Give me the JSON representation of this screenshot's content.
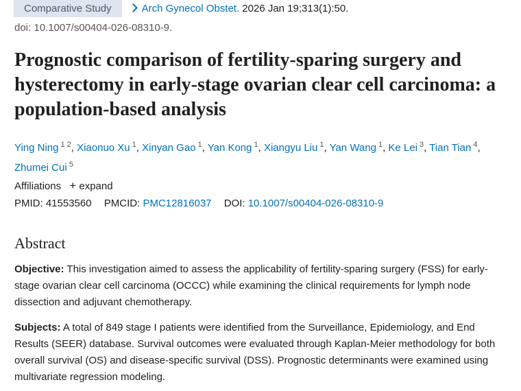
{
  "header": {
    "tag": "Comparative Study",
    "journal": "Arch Gynecol Obstet.",
    "citation": " 2026 Jan 19;313(1):50.",
    "doi": "doi: 10.1007/s00404-026-08310-9."
  },
  "title": "Prognostic comparison of fertility-sparing surgery and hysterectomy in early-stage ovarian clear cell carcinoma: a population-based analysis",
  "authors": [
    {
      "name": "Ying Ning",
      "sups": [
        "1",
        "2"
      ]
    },
    {
      "name": "Xiaonuo Xu",
      "sups": [
        "1"
      ]
    },
    {
      "name": "Xinyan Gao",
      "sups": [
        "1"
      ]
    },
    {
      "name": "Yan Kong",
      "sups": [
        "1"
      ]
    },
    {
      "name": "Xiangyu Liu",
      "sups": [
        "1"
      ]
    },
    {
      "name": "Yan Wang",
      "sups": [
        "1"
      ]
    },
    {
      "name": "Ke Lei",
      "sups": [
        "3"
      ]
    },
    {
      "name": "Tian Tian",
      "sups": [
        "4"
      ]
    },
    {
      "name": "Zhumei Cui",
      "sups": [
        "5"
      ]
    }
  ],
  "affiliations": {
    "label": "Affiliations",
    "expand": "expand"
  },
  "ids": {
    "pmid_label": "PMID:",
    "pmid": "41553560",
    "pmcid_label": "PMCID:",
    "pmcid": "PMC12816037",
    "doi_label": "DOI:",
    "doi": "10.1007/s00404-026-08310-9"
  },
  "abstract": {
    "heading": "Abstract",
    "sections": [
      {
        "label": "Objective:",
        "text": " This investigation aimed to assess the applicability of fertility-sparing surgery (FSS) for early-stage ovarian clear cell carcinoma (OCCC) while examining the clinical requirements for lymph node dissection and adjuvant chemotherapy."
      },
      {
        "label": "Subjects:",
        "text": " A total of 849 stage I patients were identified from the Surveillance, Epidemiology, and End Results (SEER) database. Survival outcomes were evaluated through Kaplan-Meier methodology for both overall survival (OS) and disease-specific survival (DSS). Prognostic determinants were examined using multivariate regression modeling."
      }
    ]
  }
}
